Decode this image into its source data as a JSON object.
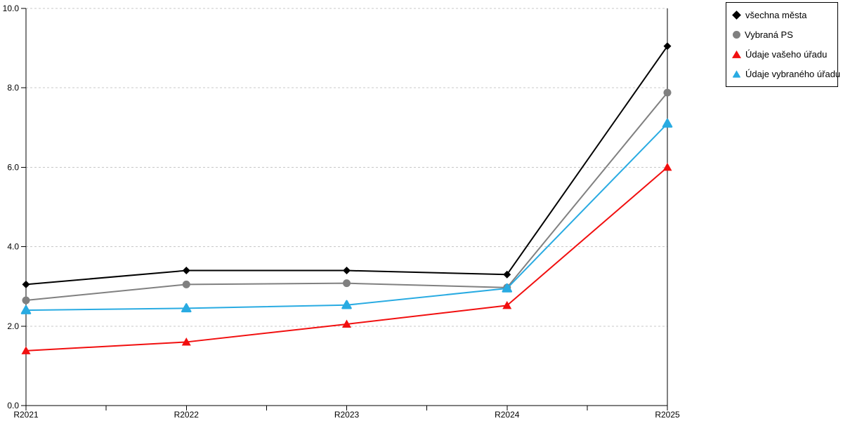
{
  "chart_data": {
    "type": "line",
    "categories": [
      "R2021",
      "R2022",
      "R2023",
      "R2024",
      "R2025"
    ],
    "series": [
      {
        "name": "všechna města",
        "color": "#000000",
        "marker": "diamond",
        "values": [
          3.05,
          3.4,
          3.4,
          3.3,
          9.05
        ]
      },
      {
        "name": "Vybraná PS",
        "color": "#808080",
        "marker": "circle",
        "values": [
          2.65,
          3.05,
          3.08,
          2.97,
          7.88
        ]
      },
      {
        "name": "Údaje vašeho úřadu",
        "color": "#f10f0f",
        "marker": "triangle",
        "values": [
          1.38,
          1.6,
          2.05,
          2.52,
          6.0
        ]
      },
      {
        "name": "Údaje vybraného úřadu",
        "color": "#29abe2",
        "marker": "triangle-round",
        "values": [
          2.4,
          2.45,
          2.53,
          2.95,
          7.1
        ]
      }
    ],
    "title": "",
    "xlabel": "",
    "ylabel": "",
    "ylim": [
      0,
      10
    ],
    "ytick_values": [
      0,
      2,
      4,
      6,
      8,
      10
    ],
    "ytick_labels": [
      "0.0",
      "2.0",
      "4.0",
      "6.0",
      "8.0",
      "10.0"
    ],
    "grid": true,
    "grid_style": "dashed",
    "legend_position": "top-right",
    "colors": {
      "axis": "#000000",
      "grid": "#c8c8c8",
      "text": "#000000",
      "background": "#ffffff"
    }
  }
}
